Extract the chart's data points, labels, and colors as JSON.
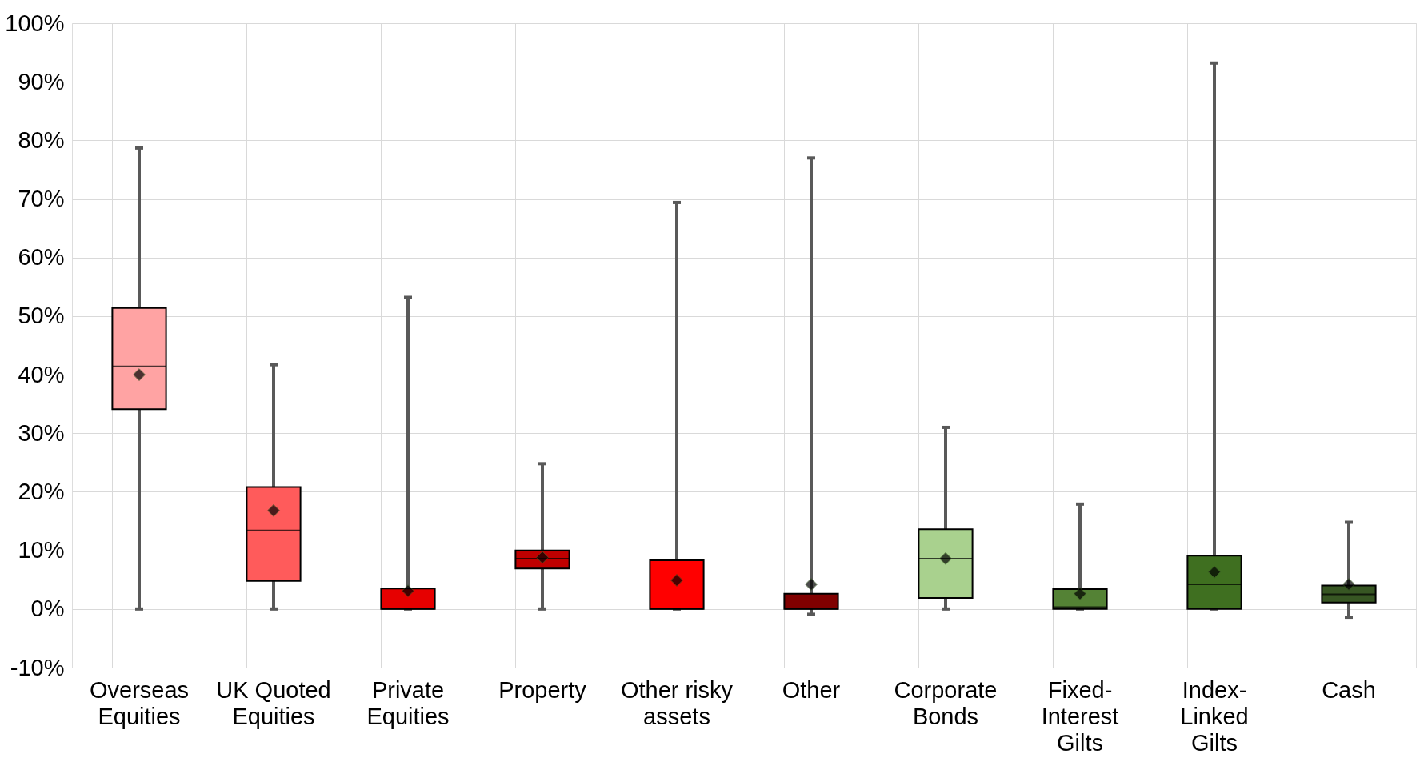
{
  "chart_data": {
    "type": "box",
    "categories": [
      "Overseas Equities",
      "UK Quoted Equities",
      "Private Equities",
      "Property",
      "Other risky assets",
      "Other",
      "Corporate Bonds",
      "Fixed-Interest Gilts",
      "Index-Linked Gilts",
      "Cash"
    ],
    "colors": [
      "#ffa3a3",
      "#ff5b5b",
      "#e60000",
      "#c00000",
      "#ff0000",
      "#800000",
      "#a9d18e",
      "#548235",
      "#3f6f20",
      "#375623"
    ],
    "boxes": [
      {
        "low": 0,
        "q1": 34.1,
        "median": 41.4,
        "q3": 51.4,
        "high": 78.7,
        "mean": 40.0
      },
      {
        "low": 0,
        "q1": 4.8,
        "median": 13.4,
        "q3": 20.8,
        "high": 41.7,
        "mean": 16.8
      },
      {
        "low": 0,
        "q1": 0,
        "median": 0,
        "q3": 3.5,
        "high": 53.2,
        "mean": 3.1
      },
      {
        "low": 0,
        "q1": 6.9,
        "median": 8.6,
        "q3": 10.0,
        "high": 24.8,
        "mean": 8.8
      },
      {
        "low": 0,
        "q1": 0,
        "median": 0,
        "q3": 8.3,
        "high": 69.4,
        "mean": 4.9
      },
      {
        "low": -0.9,
        "q1": 0,
        "median": 0,
        "q3": 2.6,
        "high": 77.0,
        "mean": 4.2
      },
      {
        "low": 0,
        "q1": 1.9,
        "median": 8.6,
        "q3": 13.6,
        "high": 31.0,
        "mean": 8.6
      },
      {
        "low": 0,
        "q1": 0,
        "median": 0.3,
        "q3": 3.4,
        "high": 17.9,
        "mean": 2.6
      },
      {
        "low": 0,
        "q1": 0,
        "median": 4.2,
        "q3": 9.1,
        "high": 93.2,
        "mean": 6.3
      },
      {
        "low": -1.4,
        "q1": 1.1,
        "median": 2.5,
        "q3": 4.0,
        "high": 14.8,
        "mean": 4.2
      }
    ],
    "ylim": [
      -10,
      100
    ],
    "yticks": [
      {
        "value": -10,
        "label": "-10%"
      },
      {
        "value": 0,
        "label": "0%"
      },
      {
        "value": 10,
        "label": "10%"
      },
      {
        "value": 20,
        "label": "20%"
      },
      {
        "value": 30,
        "label": "30%"
      },
      {
        "value": 40,
        "label": "40%"
      },
      {
        "value": 50,
        "label": "50%"
      },
      {
        "value": 60,
        "label": "60%"
      },
      {
        "value": 70,
        "label": "70%"
      },
      {
        "value": 80,
        "label": "80%"
      },
      {
        "value": 90,
        "label": "90%"
      },
      {
        "value": 100,
        "label": "100%"
      }
    ],
    "grid": true,
    "legend": false,
    "marker": "diamond"
  }
}
